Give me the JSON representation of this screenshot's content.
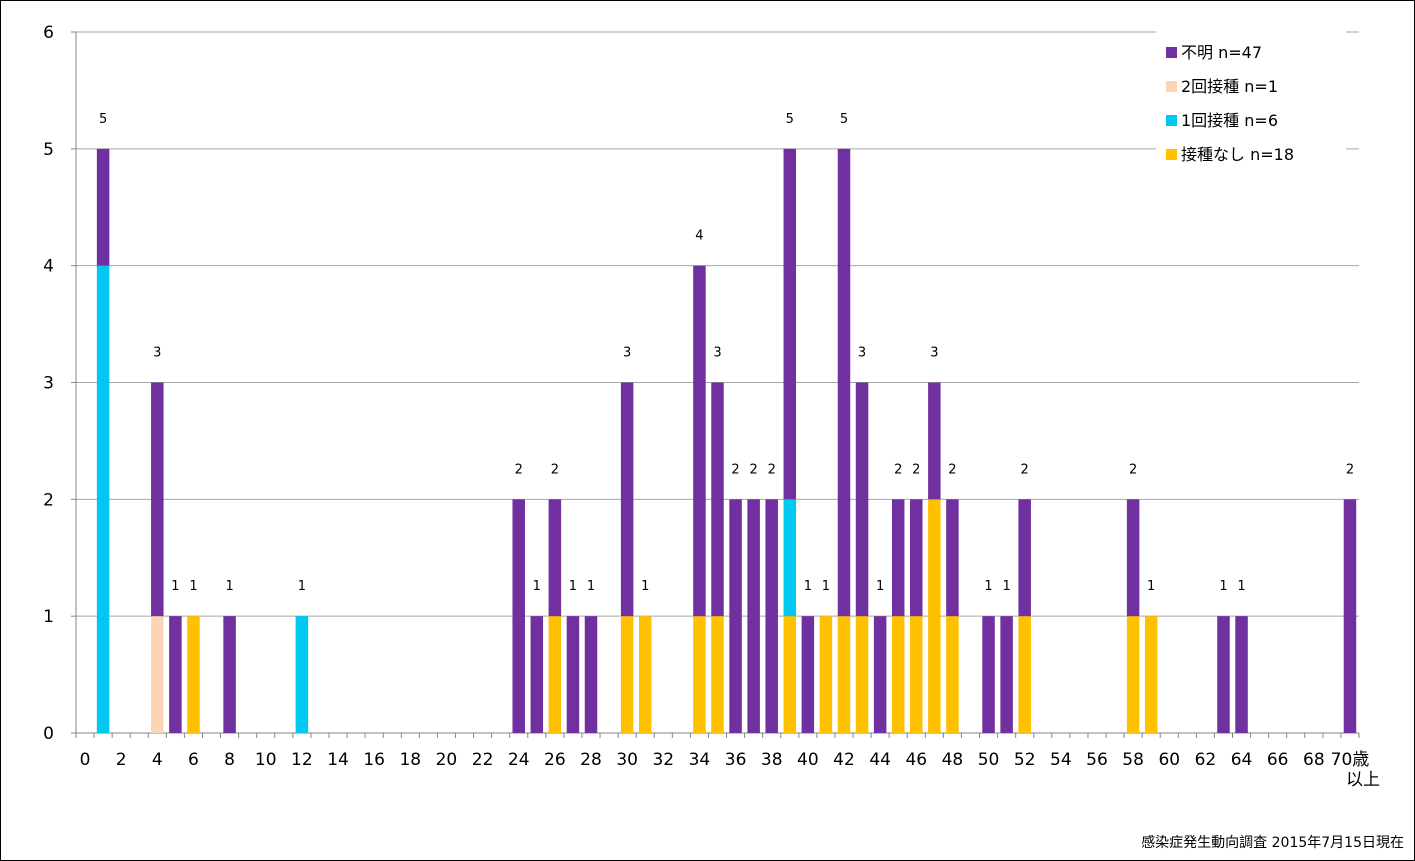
{
  "chart_data": {
    "type": "bar",
    "stacked": true,
    "title": "",
    "xlabel": "",
    "ylabel": "",
    "ylim": [
      0,
      6
    ],
    "yticks": [
      "0",
      "1",
      "2",
      "3",
      "4",
      "5",
      "6"
    ],
    "grid": true,
    "legend_placement": "top-right",
    "categories": [
      "0",
      "1",
      "2",
      "3",
      "4",
      "5",
      "6",
      "7",
      "8",
      "9",
      "10",
      "11",
      "12",
      "13",
      "14",
      "15",
      "16",
      "17",
      "18",
      "19",
      "20",
      "21",
      "22",
      "23",
      "24",
      "25",
      "26",
      "27",
      "28",
      "29",
      "30",
      "31",
      "32",
      "33",
      "34",
      "35",
      "36",
      "37",
      "38",
      "39",
      "40",
      "41",
      "42",
      "43",
      "44",
      "45",
      "46",
      "47",
      "48",
      "49",
      "50",
      "51",
      "52",
      "53",
      "54",
      "55",
      "56",
      "57",
      "58",
      "59",
      "60",
      "61",
      "62",
      "63",
      "64",
      "65",
      "66",
      "67",
      "68",
      "69",
      "70"
    ],
    "xtick_labels": [
      "0",
      "2",
      "4",
      "6",
      "8",
      "10",
      "12",
      "14",
      "16",
      "18",
      "20",
      "22",
      "24",
      "26",
      "28",
      "30",
      "32",
      "34",
      "36",
      "38",
      "40",
      "42",
      "44",
      "46",
      "48",
      "50",
      "52",
      "54",
      "56",
      "58",
      "60",
      "62",
      "64",
      "66",
      "68",
      "70歳"
    ],
    "last_tick_sublabel": "以上",
    "series": [
      {
        "name": "接種なし n=18",
        "color": "#FFC000",
        "values": [
          0,
          0,
          0,
          0,
          0,
          0,
          1,
          0,
          0,
          0,
          0,
          0,
          0,
          0,
          0,
          0,
          0,
          0,
          0,
          0,
          0,
          0,
          0,
          0,
          0,
          0,
          1,
          0,
          0,
          0,
          1,
          1,
          0,
          0,
          1,
          1,
          0,
          0,
          0,
          1,
          0,
          1,
          1,
          1,
          0,
          1,
          1,
          2,
          1,
          0,
          0,
          0,
          1,
          0,
          0,
          0,
          0,
          0,
          1,
          1,
          0,
          0,
          0,
          0,
          0,
          0,
          0,
          0,
          0,
          0,
          0
        ]
      },
      {
        "name": "1回接種 n=6",
        "color": "#00C8F0",
        "values": [
          0,
          4,
          0,
          0,
          0,
          0,
          0,
          0,
          0,
          0,
          0,
          0,
          1,
          0,
          0,
          0,
          0,
          0,
          0,
          0,
          0,
          0,
          0,
          0,
          0,
          0,
          0,
          0,
          0,
          0,
          0,
          0,
          0,
          0,
          0,
          0,
          0,
          0,
          0,
          1,
          0,
          0,
          0,
          0,
          0,
          0,
          0,
          0,
          0,
          0,
          0,
          0,
          0,
          0,
          0,
          0,
          0,
          0,
          0,
          0,
          0,
          0,
          0,
          0,
          0,
          0,
          0,
          0,
          0,
          0,
          0
        ]
      },
      {
        "name": "2回接種 n=1",
        "color": "#FCD5B4",
        "values": [
          0,
          0,
          0,
          0,
          1,
          0,
          0,
          0,
          0,
          0,
          0,
          0,
          0,
          0,
          0,
          0,
          0,
          0,
          0,
          0,
          0,
          0,
          0,
          0,
          0,
          0,
          0,
          0,
          0,
          0,
          0,
          0,
          0,
          0,
          0,
          0,
          0,
          0,
          0,
          0,
          0,
          0,
          0,
          0,
          0,
          0,
          0,
          0,
          0,
          0,
          0,
          0,
          0,
          0,
          0,
          0,
          0,
          0,
          0,
          0,
          0,
          0,
          0,
          0,
          0,
          0,
          0,
          0,
          0,
          0,
          0
        ]
      },
      {
        "name": "不明 n=47",
        "color": "#7030A0",
        "values": [
          0,
          1,
          0,
          0,
          2,
          1,
          0,
          0,
          1,
          0,
          0,
          0,
          0,
          0,
          0,
          0,
          0,
          0,
          0,
          0,
          0,
          0,
          0,
          0,
          2,
          1,
          1,
          1,
          1,
          0,
          2,
          0,
          0,
          0,
          3,
          2,
          2,
          2,
          2,
          3,
          1,
          0,
          4,
          2,
          1,
          1,
          1,
          1,
          1,
          0,
          1,
          1,
          1,
          0,
          0,
          0,
          0,
          0,
          1,
          0,
          0,
          0,
          0,
          1,
          1,
          0,
          0,
          0,
          0,
          0,
          2
        ]
      }
    ],
    "legend_order": [
      "不明 n=47",
      "2回接種 n=1",
      "1回接種 n=6",
      "接種なし n=18"
    ]
  },
  "source_note": "感染症発生動向調査 2015年7月15日現在"
}
